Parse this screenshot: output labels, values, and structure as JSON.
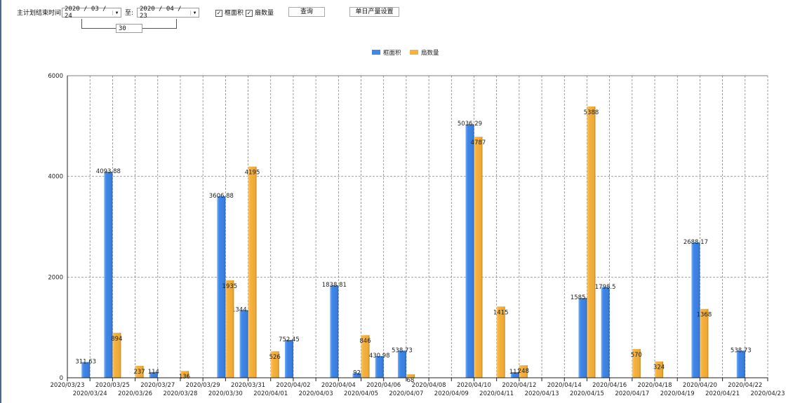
{
  "toolbar": {
    "label": "主计划结束时间:",
    "start_date": "2020 / 03 / 24",
    "to_label": "至:",
    "end_date": "2020 / 04 / 23",
    "days": "30",
    "check_area": "框面积",
    "check_count": "扇数量",
    "query_button": "查询",
    "daily_button": "单日产量设置"
  },
  "chart_data": {
    "type": "bar",
    "legend_position": "top-center",
    "grid": true,
    "ylim": [
      0,
      6000
    ],
    "yticks": [
      0,
      2000,
      4000,
      6000
    ],
    "colors": {
      "框面积": "#3f87e8",
      "扇数量": "#f5b23e"
    },
    "categories": [
      "2020/03/23",
      "2020/03/24",
      "2020/03/25",
      "2020/03/26",
      "2020/03/27",
      "2020/03/28",
      "2020/03/29",
      "2020/03/30",
      "2020/03/31",
      "2020/04/01",
      "2020/04/02",
      "2020/04/03",
      "2020/04/04",
      "2020/04/05",
      "2020/04/06",
      "2020/04/07",
      "2020/04/08",
      "2020/04/09",
      "2020/04/10",
      "2020/04/11",
      "2020/04/12",
      "2020/04/13",
      "2020/04/14",
      "2020/04/15",
      "2020/04/16",
      "2020/04/17",
      "2020/04/18",
      "2020/04/19",
      "2020/04/20",
      "2020/04/21",
      "2020/04/22",
      "2020/04/23"
    ],
    "series": [
      {
        "name": "框面积",
        "values": [
          null,
          311.63,
          4093.88,
          null,
          114,
          null,
          null,
          3606.88,
          1344.95,
          null,
          752.45,
          null,
          1838.81,
          92,
          430.98,
          538.73,
          null,
          null,
          5036.29,
          null,
          111,
          null,
          null,
          1585.96,
          1798.5,
          null,
          null,
          null,
          2688.17,
          null,
          538.73,
          null
        ]
      },
      {
        "name": "扇数量",
        "values": [
          null,
          null,
          894,
          237,
          null,
          136,
          null,
          1935,
          4195,
          526,
          null,
          null,
          null,
          846,
          null,
          68,
          null,
          null,
          4787,
          1415,
          248,
          null,
          null,
          5388,
          null,
          570,
          324,
          null,
          1368,
          null,
          null,
          null
        ]
      }
    ]
  }
}
